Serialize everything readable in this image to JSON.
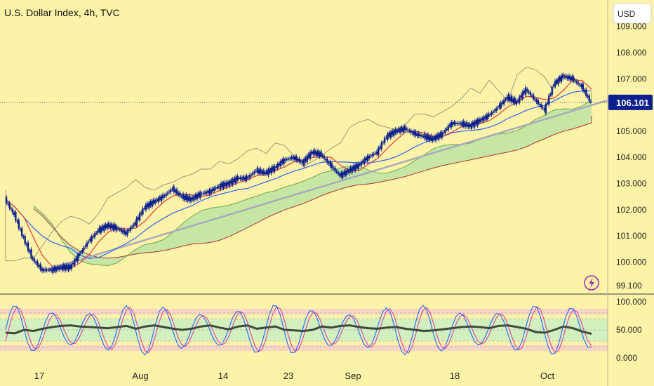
{
  "header": {
    "title": "U.S. Dollar Index, 4h, TVC"
  },
  "currency_button": {
    "label": "USD"
  },
  "colors": {
    "background": "#fdf3a8",
    "candle": "#0b1f8f",
    "blue_line": "#2962ff",
    "red_line": "#e53935",
    "lagging_line": "#9e9a7a",
    "cloud_fill": "#bde3a3",
    "trendline": "#a9a9bd",
    "rsi_band": "#cdf0c0",
    "rsi_over": "#f2c9cf",
    "stoch_k": "#2962ff",
    "stoch_d": "#e040a0",
    "rsi_line": "#3f4a3c",
    "price_tag": "#0b1f8f",
    "lightning": "#9c27b0"
  },
  "chart_data": [
    {
      "type": "line",
      "title": "U.S. Dollar Index, 4h, TVC",
      "y_ticks": [
        "109.000",
        "108.000",
        "107.000",
        "106.101",
        "105.000",
        "104.000",
        "103.000",
        "102.000",
        "101.000",
        "100.000",
        "99.100"
      ],
      "ylim": [
        99.1,
        110.0
      ],
      "x_ticks": [
        "17",
        "Aug",
        "14",
        "23",
        "Sep",
        "18",
        "Oct"
      ],
      "last_price": "106.101",
      "series": [
        {
          "values": [
            102.4,
            101.8,
            100.9,
            100.1,
            99.7,
            99.7,
            99.8,
            99.8,
            100.3,
            100.8,
            101.2,
            101.4,
            101.3,
            101.1,
            101.5,
            102.1,
            102.3,
            102.5,
            102.8,
            102.5,
            102.4,
            102.6,
            102.7,
            102.9,
            103.0,
            103.2,
            103.2,
            103.5,
            103.4,
            103.6,
            103.9,
            104.0,
            103.8,
            104.2,
            104.1,
            103.7,
            103.3,
            103.5,
            103.7,
            104.0,
            104.2,
            104.8,
            105.0,
            105.1,
            104.9,
            104.8,
            104.7,
            104.9,
            105.3,
            105.3,
            105.2,
            105.4,
            105.6,
            105.9,
            106.3,
            106.1,
            106.6,
            106.2,
            105.8,
            106.8,
            107.1,
            107.0,
            106.7,
            106.1
          ]
        }
      ]
    },
    {
      "type": "line",
      "y_ticks": [
        "100.000",
        "50.000",
        "0.000"
      ],
      "ylim": [
        0,
        100
      ],
      "series": [
        {
          "values": [
            45,
            44,
            50,
            48,
            52,
            55,
            57,
            58,
            56,
            55,
            54,
            53,
            55,
            57,
            52,
            56,
            58,
            55,
            52,
            50,
            52,
            56,
            58,
            54,
            51,
            56,
            58,
            52,
            54,
            56,
            50,
            49,
            48,
            50,
            56,
            54,
            57,
            58,
            55,
            53,
            52,
            54,
            55,
            52,
            50,
            48,
            49,
            51,
            53,
            55,
            56,
            55,
            53,
            57,
            58,
            55,
            52,
            46,
            45,
            50,
            56,
            53,
            47,
            43
          ]
        }
      ]
    }
  ]
}
